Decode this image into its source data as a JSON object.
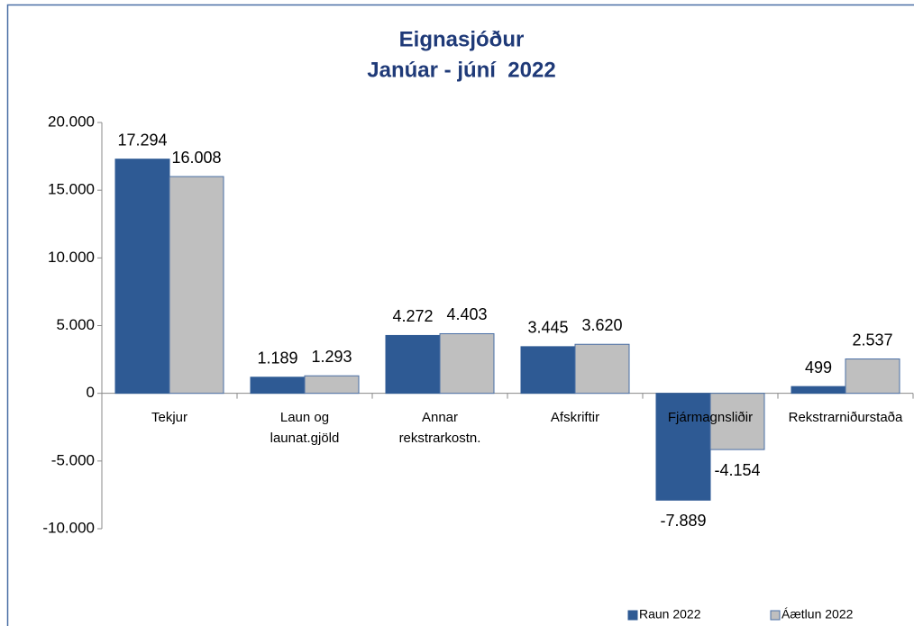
{
  "chart_data": {
    "type": "bar",
    "title": "Eignasjóður",
    "subtitle": "Janúar - júní  2022",
    "categories": [
      "Tekjur",
      "Laun og\nlaunat.gjöld",
      "Annar\nrekstrarkostn.",
      "Afskriftir",
      "Fjármagnsliðir",
      "Rekstrarniðurstaða"
    ],
    "series": [
      {
        "name": "Raun 2022",
        "color": "#2e5a94",
        "values": [
          17294,
          1189,
          4272,
          3445,
          -7889,
          499
        ],
        "value_labels": [
          "17.294",
          "1.189",
          "4.272",
          "3.445",
          "-7.889",
          "499"
        ]
      },
      {
        "name": "Áætlun 2022",
        "color": "#bfbfbf",
        "values": [
          16008,
          1293,
          4403,
          3620,
          -4154,
          2537
        ],
        "value_labels": [
          "16.008",
          "1.293",
          "4.403",
          "3.620",
          "-4.154",
          "2.537"
        ]
      }
    ],
    "ylim": [
      -10000,
      20000
    ],
    "yticks": [
      {
        "value": -10000,
        "label": "-10.000"
      },
      {
        "value": -5000,
        "label": "-5.000"
      },
      0,
      {
        "value": 5000,
        "label": "5.000"
      },
      {
        "value": 10000,
        "label": "10.000"
      },
      {
        "value": 15000,
        "label": "15.000"
      },
      {
        "value": 20000,
        "label": "20.000"
      }
    ],
    "legend": "bottom-right"
  }
}
